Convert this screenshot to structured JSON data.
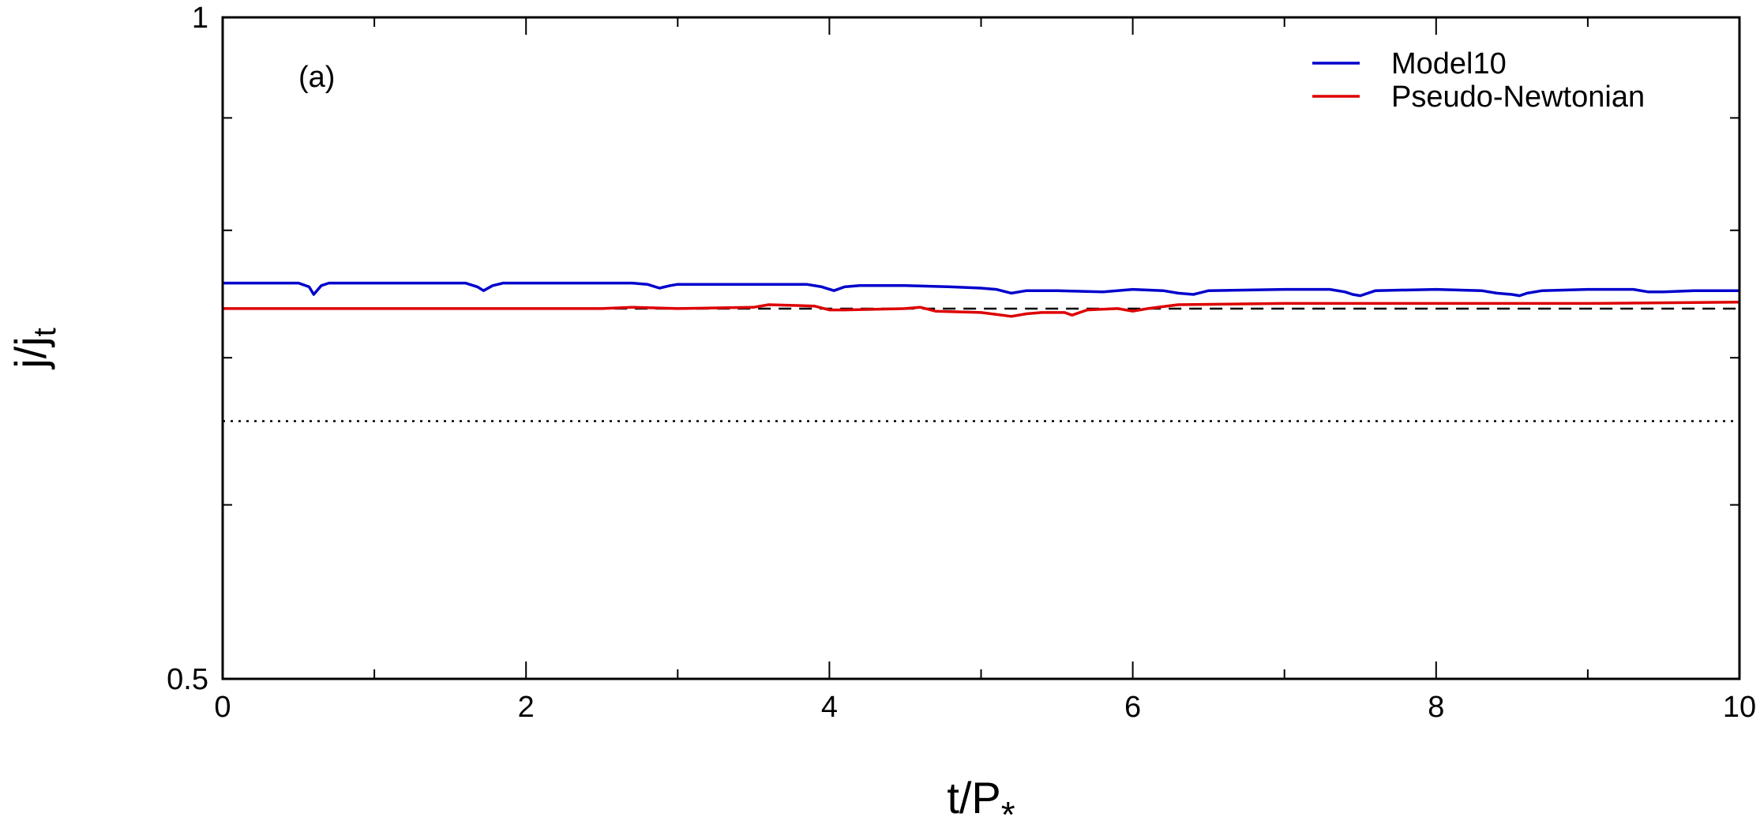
{
  "chart_data": {
    "type": "line",
    "panel_label": "(a)",
    "xlabel": "t/P",
    "xlabel_sub": "*",
    "ylabel": "j/j",
    "ylabel_sub": "t",
    "xlim": [
      0,
      10
    ],
    "ylim": [
      0.5,
      1
    ],
    "y_scale": "log",
    "x_ticks": [
      0,
      2,
      4,
      6,
      8,
      10
    ],
    "x_ticks_minor": [
      1,
      3,
      5,
      7,
      9
    ],
    "x_tick_labels": [
      "0",
      "2",
      "4",
      "6",
      "8",
      "10"
    ],
    "y_tick_labels": [
      {
        "value": 1,
        "label": "1"
      },
      {
        "value": 0.5,
        "label": "0.5"
      }
    ],
    "y_ticks_minor": [
      0.6,
      0.7,
      0.8,
      0.9
    ],
    "legend_position": "top-right",
    "series": [
      {
        "name": "Model10",
        "color": "#0000cc",
        "x": [
          0,
          0.5,
          0.57,
          0.6,
          0.65,
          0.7,
          1.0,
          1.6,
          1.68,
          1.72,
          1.78,
          1.85,
          2.2,
          2.7,
          2.8,
          2.88,
          2.95,
          3.0,
          3.5,
          3.85,
          3.95,
          4.03,
          4.1,
          4.2,
          4.5,
          4.8,
          5.0,
          5.1,
          5.2,
          5.3,
          5.5,
          5.8,
          6.0,
          6.2,
          6.3,
          6.4,
          6.5,
          7.0,
          7.3,
          7.4,
          7.45,
          7.5,
          7.6,
          8.0,
          8.3,
          8.4,
          8.5,
          8.55,
          8.6,
          8.7,
          9.0,
          9.3,
          9.4,
          9.5,
          9.7,
          10.0
        ],
        "y": [
          0.757,
          0.757,
          0.754,
          0.748,
          0.755,
          0.757,
          0.757,
          0.757,
          0.754,
          0.751,
          0.755,
          0.757,
          0.757,
          0.757,
          0.756,
          0.753,
          0.755,
          0.756,
          0.756,
          0.756,
          0.754,
          0.751,
          0.754,
          0.755,
          0.755,
          0.754,
          0.753,
          0.752,
          0.749,
          0.751,
          0.751,
          0.75,
          0.752,
          0.751,
          0.749,
          0.748,
          0.751,
          0.752,
          0.752,
          0.75,
          0.748,
          0.747,
          0.751,
          0.752,
          0.751,
          0.749,
          0.748,
          0.747,
          0.749,
          0.751,
          0.752,
          0.752,
          0.75,
          0.75,
          0.751,
          0.751
        ]
      },
      {
        "name": "Pseudo-Newtonian",
        "color": "#dd0000",
        "x": [
          0,
          1.5,
          2.5,
          2.7,
          3.0,
          3.5,
          3.6,
          3.9,
          4.0,
          4.1,
          4.5,
          4.6,
          4.7,
          5.0,
          5.2,
          5.3,
          5.4,
          5.55,
          5.6,
          5.7,
          5.9,
          6.0,
          6.1,
          6.3,
          7.0,
          8.0,
          9.0,
          10.0
        ],
        "y": [
          0.737,
          0.737,
          0.737,
          0.738,
          0.737,
          0.738,
          0.74,
          0.739,
          0.736,
          0.736,
          0.737,
          0.738,
          0.735,
          0.734,
          0.731,
          0.733,
          0.734,
          0.734,
          0.732,
          0.736,
          0.737,
          0.735,
          0.737,
          0.74,
          0.741,
          0.741,
          0.741,
          0.742
        ]
      }
    ],
    "reference_lines": [
      {
        "style": "dashed",
        "y": 0.737,
        "x_start": 1.5,
        "x_end": 10
      },
      {
        "style": "dotted",
        "y": 0.655,
        "x_start": 0,
        "x_end": 10
      }
    ]
  }
}
